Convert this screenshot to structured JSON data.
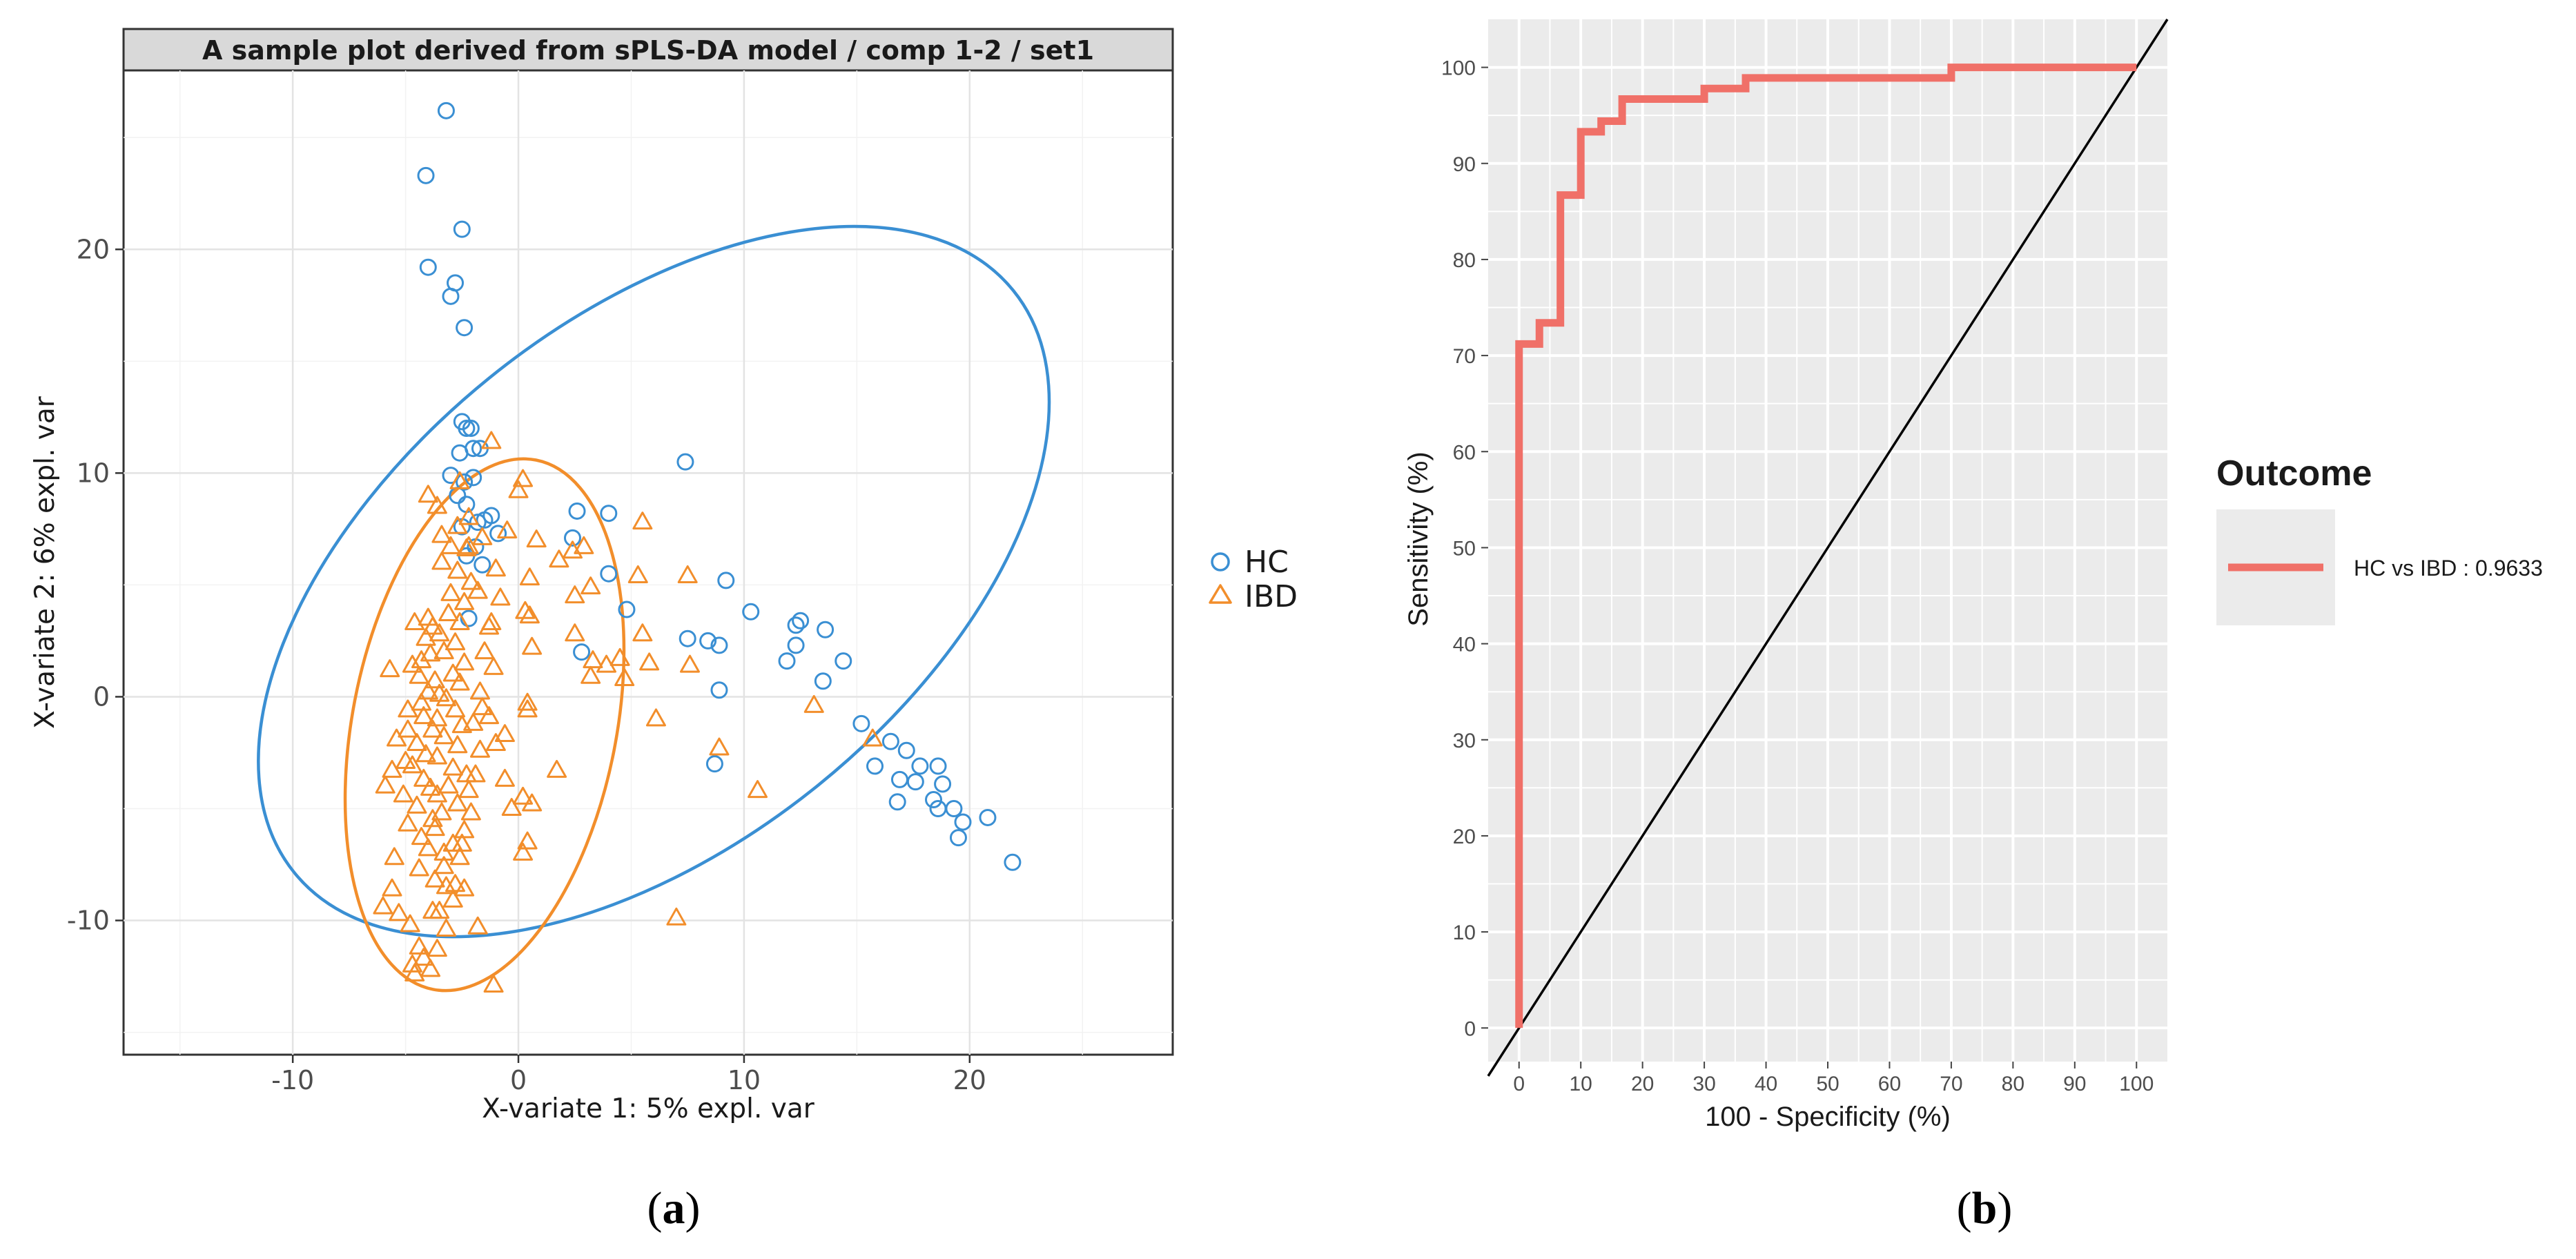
{
  "figure": {
    "panel_a_label_prefix": "(",
    "panel_a_label_letter": "a",
    "panel_a_label_suffix": ")",
    "panel_b_label_prefix": "(",
    "panel_b_label_letter": "b",
    "panel_b_label_suffix": ")"
  },
  "colors": {
    "hc": "#3a8fd3",
    "ibd": "#f28e2b",
    "roc": "#f07068",
    "panel_bg_b": "#ebebeb",
    "strip_bg": "#d9d9d9"
  },
  "chart_data": [
    {
      "type": "scatter",
      "title": "A sample plot derived from sPLS-DA model / comp 1-2 / set1",
      "xlabel": "X-variate 1: 5% expl. var",
      "ylabel": "X-variate 2: 6% expl. var",
      "xlim": [
        -17.5,
        29
      ],
      "ylim": [
        -16,
        28
      ],
      "xticks": [
        -10,
        0,
        10,
        20
      ],
      "yticks": [
        -10,
        0,
        10,
        20
      ],
      "legend": {
        "position": "right",
        "entries": [
          "HC",
          "IBD"
        ]
      },
      "grid": true,
      "series": [
        {
          "name": "HC",
          "marker": "circle",
          "points": [
            [
              -3.2,
              26.2
            ],
            [
              -4.1,
              23.3
            ],
            [
              -2.5,
              20.9
            ],
            [
              -4,
              19.2
            ],
            [
              -2.8,
              18.5
            ],
            [
              -3,
              17.9
            ],
            [
              -2.4,
              16.5
            ],
            [
              -2.5,
              12.3
            ],
            [
              -2.3,
              12
            ],
            [
              -2.1,
              12
            ],
            [
              -2,
              11.1
            ],
            [
              -1.7,
              11.1
            ],
            [
              -2.6,
              10.9
            ],
            [
              -3,
              9.9
            ],
            [
              -2,
              9.8
            ],
            [
              -2.4,
              9.6
            ],
            [
              -2.7,
              9
            ],
            [
              -2.3,
              8.6
            ],
            [
              -1.2,
              8.1
            ],
            [
              -1.5,
              7.9
            ],
            [
              -2.5,
              7.6
            ],
            [
              -1.8,
              7.8
            ],
            [
              -0.9,
              7.3
            ],
            [
              -1.9,
              6.7
            ],
            [
              -2.3,
              6.3
            ],
            [
              -1.6,
              5.9
            ],
            [
              -2.2,
              3.5
            ],
            [
              2.4,
              7.1
            ],
            [
              2.6,
              8.3
            ],
            [
              4,
              8.2
            ],
            [
              4,
              5.5
            ],
            [
              4.8,
              3.9
            ],
            [
              2.8,
              2
            ],
            [
              7.4,
              10.5
            ],
            [
              9.2,
              5.2
            ],
            [
              10.3,
              3.8
            ],
            [
              12.3,
              3.2
            ],
            [
              12.5,
              3.4
            ],
            [
              13.6,
              3
            ],
            [
              7.5,
              2.6
            ],
            [
              8.4,
              2.5
            ],
            [
              8.9,
              2.3
            ],
            [
              12.3,
              2.3
            ],
            [
              14.4,
              1.6
            ],
            [
              11.9,
              1.6
            ],
            [
              13.5,
              0.7
            ],
            [
              8.9,
              0.3
            ],
            [
              15.2,
              -1.2
            ],
            [
              16.5,
              -2
            ],
            [
              17.2,
              -2.4
            ],
            [
              15.8,
              -3.1
            ],
            [
              17.8,
              -3.1
            ],
            [
              18.6,
              -3.1
            ],
            [
              17.6,
              -3.8
            ],
            [
              16.9,
              -3.7
            ],
            [
              18.8,
              -3.9
            ],
            [
              18.4,
              -4.6
            ],
            [
              16.8,
              -4.7
            ],
            [
              18.6,
              -5
            ],
            [
              19.3,
              -5
            ],
            [
              19.7,
              -5.6
            ],
            [
              20.8,
              -5.4
            ],
            [
              19.5,
              -6.3
            ],
            [
              21.9,
              -7.4
            ],
            [
              8.7,
              -3
            ]
          ]
        },
        {
          "name": "IBD",
          "marker": "triangle",
          "points": [
            [
              -1.2,
              11.4
            ],
            [
              0.2,
              9.7
            ],
            [
              0,
              9.2
            ],
            [
              -4,
              9
            ],
            [
              -2.6,
              9.6
            ],
            [
              5.5,
              7.8
            ],
            [
              -0.5,
              7.4
            ],
            [
              0.8,
              7
            ],
            [
              -3,
              6.7
            ],
            [
              2.4,
              6.5
            ],
            [
              2.9,
              6.7
            ],
            [
              1.8,
              6.1
            ],
            [
              -1,
              5.7
            ],
            [
              0.5,
              5.3
            ],
            [
              3.2,
              4.9
            ],
            [
              5.3,
              5.4
            ],
            [
              7.5,
              5.4
            ],
            [
              2.5,
              4.5
            ],
            [
              -0.8,
              4.4
            ],
            [
              0.3,
              3.8
            ],
            [
              0.5,
              3.6
            ],
            [
              -1.2,
              3.3
            ],
            [
              2.5,
              2.8
            ],
            [
              5.5,
              2.8
            ],
            [
              0.6,
              2.2
            ],
            [
              3.3,
              1.6
            ],
            [
              3.9,
              1.4
            ],
            [
              7.6,
              1.4
            ],
            [
              5.8,
              1.5
            ],
            [
              4.5,
              1.7
            ],
            [
              -1.1,
              1.3
            ],
            [
              3.2,
              0.9
            ],
            [
              4.7,
              0.8
            ],
            [
              0.4,
              -0.3
            ],
            [
              6.1,
              -1
            ],
            [
              13.1,
              -0.4
            ],
            [
              15.7,
              -1.9
            ],
            [
              8.9,
              -2.3
            ],
            [
              -0.6,
              -1.7
            ],
            [
              -0.6,
              -3.7
            ],
            [
              1.7,
              -3.3
            ],
            [
              0.2,
              -4.5
            ],
            [
              0.6,
              -4.8
            ],
            [
              -0.3,
              -5
            ],
            [
              10.6,
              -4.2
            ],
            [
              0.4,
              -6.5
            ],
            [
              0.2,
              -7
            ],
            [
              7,
              -9.9
            ],
            [
              -1.8,
              -10.3
            ],
            [
              -1.1,
              -12.9
            ],
            [
              -6,
              -9.4
            ],
            [
              -5.6,
              -8.6
            ],
            [
              -5.3,
              -9.7
            ],
            [
              -4.8,
              -10.2
            ],
            [
              -4.4,
              -11.2
            ],
            [
              -3.6,
              -11.3
            ],
            [
              -4.2,
              -11.7
            ],
            [
              -4.7,
              -12
            ],
            [
              -4.6,
              -12.4
            ],
            [
              -3.9,
              -12.2
            ],
            [
              -3.2,
              -10.4
            ],
            [
              -5.5,
              -7.2
            ],
            [
              -5.9,
              -4
            ],
            [
              -5.6,
              -3.3
            ],
            [
              -5.4,
              -1.9
            ],
            [
              -5.7,
              1.2
            ],
            [
              -4.7,
              1.4
            ],
            [
              -4.6,
              3.3
            ],
            [
              -4,
              3.5
            ],
            [
              -4.9,
              -0.6
            ],
            [
              -4.3,
              -0.3
            ],
            [
              -3.9,
              -4.1
            ],
            [
              -3.8,
              -5.5
            ],
            [
              -4.3,
              -6.3
            ],
            [
              -4.4,
              -7.7
            ],
            [
              -3.7,
              -8.2
            ],
            [
              -3.5,
              -9.6
            ],
            [
              -3.2,
              -8.5
            ],
            [
              -2.8,
              -8.4
            ],
            [
              -3.3,
              -7.6
            ],
            [
              -2.6,
              -7.2
            ],
            [
              -2.9,
              -6.6
            ],
            [
              -2.4,
              -6
            ],
            [
              -3.4,
              -5.2
            ],
            [
              -2.7,
              -4.8
            ],
            [
              -3.1,
              -4
            ],
            [
              -2.3,
              -3.5
            ],
            [
              -2.9,
              -3.2
            ],
            [
              -3.6,
              -2.7
            ],
            [
              -2.7,
              -2.2
            ],
            [
              -3.3,
              -1.8
            ],
            [
              -2.5,
              -1.3
            ],
            [
              -3.6,
              -1
            ],
            [
              -2.8,
              -0.6
            ],
            [
              -3.2,
              -0.1
            ],
            [
              -3.7,
              0.7
            ],
            [
              -2.9,
              1
            ],
            [
              -2.4,
              1.5
            ],
            [
              -3.3,
              2
            ],
            [
              -2.8,
              2.4
            ],
            [
              -3.5,
              2.8
            ],
            [
              -2.6,
              3.3
            ],
            [
              -3.1,
              3.7
            ],
            [
              -2.4,
              4.2
            ],
            [
              -3,
              4.6
            ],
            [
              -2.1,
              5.1
            ],
            [
              -2.7,
              5.6
            ],
            [
              -3.4,
              6
            ],
            [
              -2.3,
              6.6
            ],
            [
              -3.4,
              7.2
            ],
            [
              -2.7,
              7.6
            ],
            [
              -2.2,
              8
            ],
            [
              -3.6,
              8.5
            ],
            [
              -3.8,
              3.1
            ],
            [
              -4.1,
              2.6
            ],
            [
              -3.9,
              1.9
            ],
            [
              -4.4,
              0.9
            ],
            [
              -4,
              0.2
            ],
            [
              -4.2,
              -0.9
            ],
            [
              -3.8,
              -1.5
            ],
            [
              -4.5,
              -2.1
            ],
            [
              -4.1,
              -2.6
            ],
            [
              -4.7,
              -3.1
            ],
            [
              -4.2,
              -3.7
            ],
            [
              -3.6,
              -4.4
            ],
            [
              -4.5,
              -4.9
            ],
            [
              -3.7,
              -5.9
            ],
            [
              -4,
              -6.8
            ],
            [
              -3.3,
              -7
            ],
            [
              -2.2,
              -4.2
            ],
            [
              -1.7,
              -2.4
            ],
            [
              -2,
              -1.2
            ],
            [
              -1.6,
              -0.5
            ],
            [
              -1.7,
              0.2
            ],
            [
              -1.5,
              2
            ],
            [
              -1.3,
              3.1
            ],
            [
              -1.8,
              4.7
            ],
            [
              -2.2,
              6.7
            ],
            [
              -1.6,
              7.1
            ],
            [
              -2.5,
              -6.6
            ],
            [
              -2.1,
              -5.2
            ],
            [
              -1.9,
              -3.5
            ],
            [
              -1,
              -2.1
            ],
            [
              -1.3,
              -0.9
            ],
            [
              0.4,
              -0.6
            ],
            [
              -2.6,
              0.6
            ],
            [
              -2.9,
              -9.1
            ],
            [
              -3.8,
              -9.6
            ],
            [
              -2.4,
              -8.6
            ],
            [
              -4.9,
              -5.7
            ],
            [
              -5.1,
              -4.4
            ],
            [
              -5,
              -2.9
            ],
            [
              -4.9,
              -1.5
            ],
            [
              -3.5,
              0.1
            ],
            [
              -4.3,
              1.6
            ]
          ]
        }
      ],
      "ellipses": [
        {
          "series": "HC",
          "center": [
            6,
            5.15
          ],
          "semi_axes_data": [
            20.5,
            11.6
          ],
          "angle_deg": -39
        },
        {
          "series": "IBD",
          "center": [
            -1.5,
            -1.25
          ],
          "semi_axes_data": [
            5.85,
            11.95
          ],
          "angle_deg": 11
        }
      ]
    },
    {
      "type": "line",
      "title": "",
      "xlabel": "100 - Specificity (%)",
      "ylabel": "Sensitivity (%)",
      "xlim": [
        -5,
        105
      ],
      "ylim": [
        -3.5,
        105
      ],
      "xticks": [
        0,
        10,
        20,
        30,
        40,
        50,
        60,
        70,
        80,
        90,
        100
      ],
      "yticks": [
        0,
        10,
        20,
        30,
        40,
        50,
        60,
        70,
        80,
        90,
        100
      ],
      "legend": {
        "position": "right",
        "title": "Outcome",
        "entries": [
          "HC vs IBD : 0.9633"
        ]
      },
      "series": [
        {
          "name": "HC vs IBD : 0.9633",
          "x": [
            0,
            0,
            3.3,
            3.3,
            6.7,
            6.7,
            10,
            10,
            13.3,
            13.3,
            16.7,
            16.7,
            30,
            30,
            36.7,
            36.7,
            70,
            70,
            100
          ],
          "y": [
            0,
            71.2,
            71.2,
            73.4,
            73.4,
            86.7,
            86.7,
            93.3,
            93.3,
            94.4,
            94.4,
            96.7,
            96.7,
            97.8,
            97.8,
            98.9,
            98.9,
            100,
            100
          ]
        },
        {
          "name": "diagonal",
          "x": [
            -5,
            105
          ],
          "y": [
            -5,
            105
          ]
        }
      ]
    }
  ]
}
